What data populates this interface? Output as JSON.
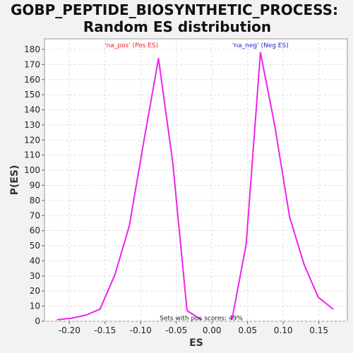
{
  "chart_data": {
    "type": "line",
    "title": [
      "GOBP_PEPTIDE_BIOSYNTHETIC_PROCESS:",
      "Random ES distribution"
    ],
    "xlabel": "ES",
    "ylabel": "P(ES)",
    "xlim": [
      -0.235,
      0.19
    ],
    "ylim": [
      0,
      187
    ],
    "xticks": [
      -0.2,
      -0.15,
      -0.1,
      -0.05,
      0.0,
      0.05,
      0.1,
      0.15
    ],
    "xtick_labels": [
      "-0.20",
      "-0.15",
      "-0.10",
      "-0.05",
      "0.00",
      "0.05",
      "0.10",
      "0.15"
    ],
    "yticks": [
      0,
      10,
      20,
      30,
      40,
      50,
      60,
      70,
      80,
      90,
      100,
      110,
      120,
      130,
      140,
      150,
      160,
      170,
      180
    ],
    "grid": true,
    "line_color": "#ee22ee",
    "series": [
      {
        "x": [
          -0.217,
          -0.197,
          -0.177,
          -0.157,
          -0.136,
          -0.116,
          -0.096,
          -0.075,
          -0.055,
          -0.035,
          -0.015
        ],
        "values": [
          1,
          2,
          4,
          8,
          31,
          63,
          118,
          174,
          105,
          7,
          1
        ]
      },
      {
        "x": [
          0.028,
          0.048,
          0.068,
          0.088,
          0.109,
          0.129,
          0.149,
          0.17
        ],
        "values": [
          1,
          51,
          178,
          130,
          69,
          38,
          16,
          8
        ]
      }
    ],
    "annotations": [
      {
        "text": "'na_pos' (Pos ES)",
        "x": -0.113,
        "y": 181.5,
        "color": "#ee2222"
      },
      {
        "text": "'na_neg' (Neg ES)",
        "x": 0.068,
        "y": 181.5,
        "color": "#2222cc"
      },
      {
        "text": "Sets with pos scores: 49%",
        "x": -0.015,
        "y": 0.8,
        "color": "#222222"
      }
    ]
  }
}
